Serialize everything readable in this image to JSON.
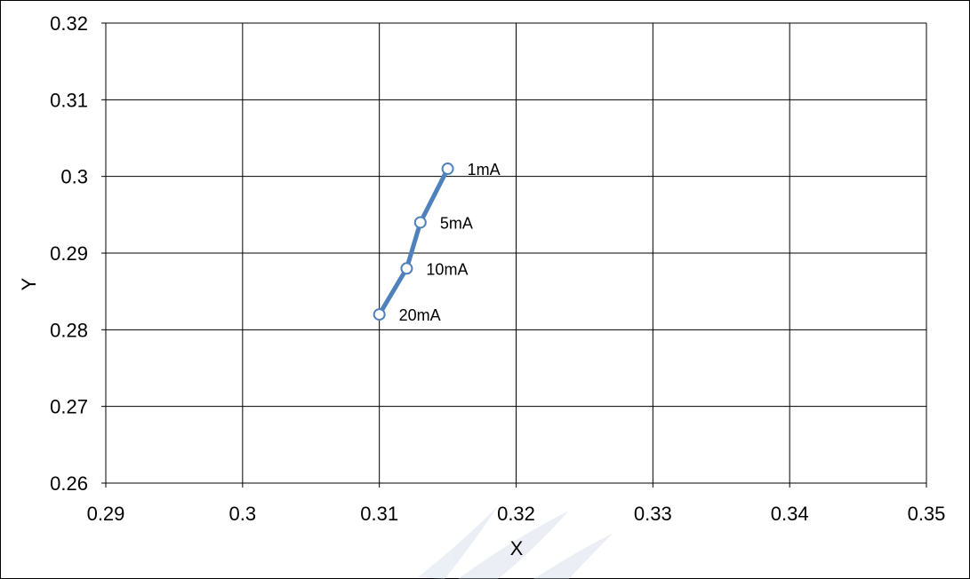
{
  "chart_data": {
    "type": "scatter",
    "title": "",
    "xlabel": "X",
    "ylabel": "Y",
    "xlim": [
      0.29,
      0.35
    ],
    "ylim": [
      0.26,
      0.32
    ],
    "x_ticks": [
      0.29,
      0.3,
      0.31,
      0.32,
      0.33,
      0.34,
      0.35
    ],
    "x_tick_labels": [
      "0.29",
      "0.3",
      "0.31",
      "0.32",
      "0.33",
      "0.34",
      "0.35"
    ],
    "y_ticks": [
      0.26,
      0.27,
      0.28,
      0.29,
      0.3,
      0.31,
      0.32
    ],
    "y_tick_labels": [
      "0.26",
      "0.27",
      "0.28",
      "0.29",
      "0.3",
      "0.31",
      "0.32"
    ],
    "grid": true,
    "legend": "none",
    "series": [
      {
        "color": "#4f81bd",
        "marker": "open-circle",
        "lines": true,
        "points": [
          {
            "x": 0.315,
            "y": 0.301,
            "label": "1mA"
          },
          {
            "x": 0.313,
            "y": 0.294,
            "label": "5mA"
          },
          {
            "x": 0.312,
            "y": 0.288,
            "label": "10mA"
          },
          {
            "x": 0.31,
            "y": 0.282,
            "label": "20mA"
          }
        ]
      }
    ]
  }
}
